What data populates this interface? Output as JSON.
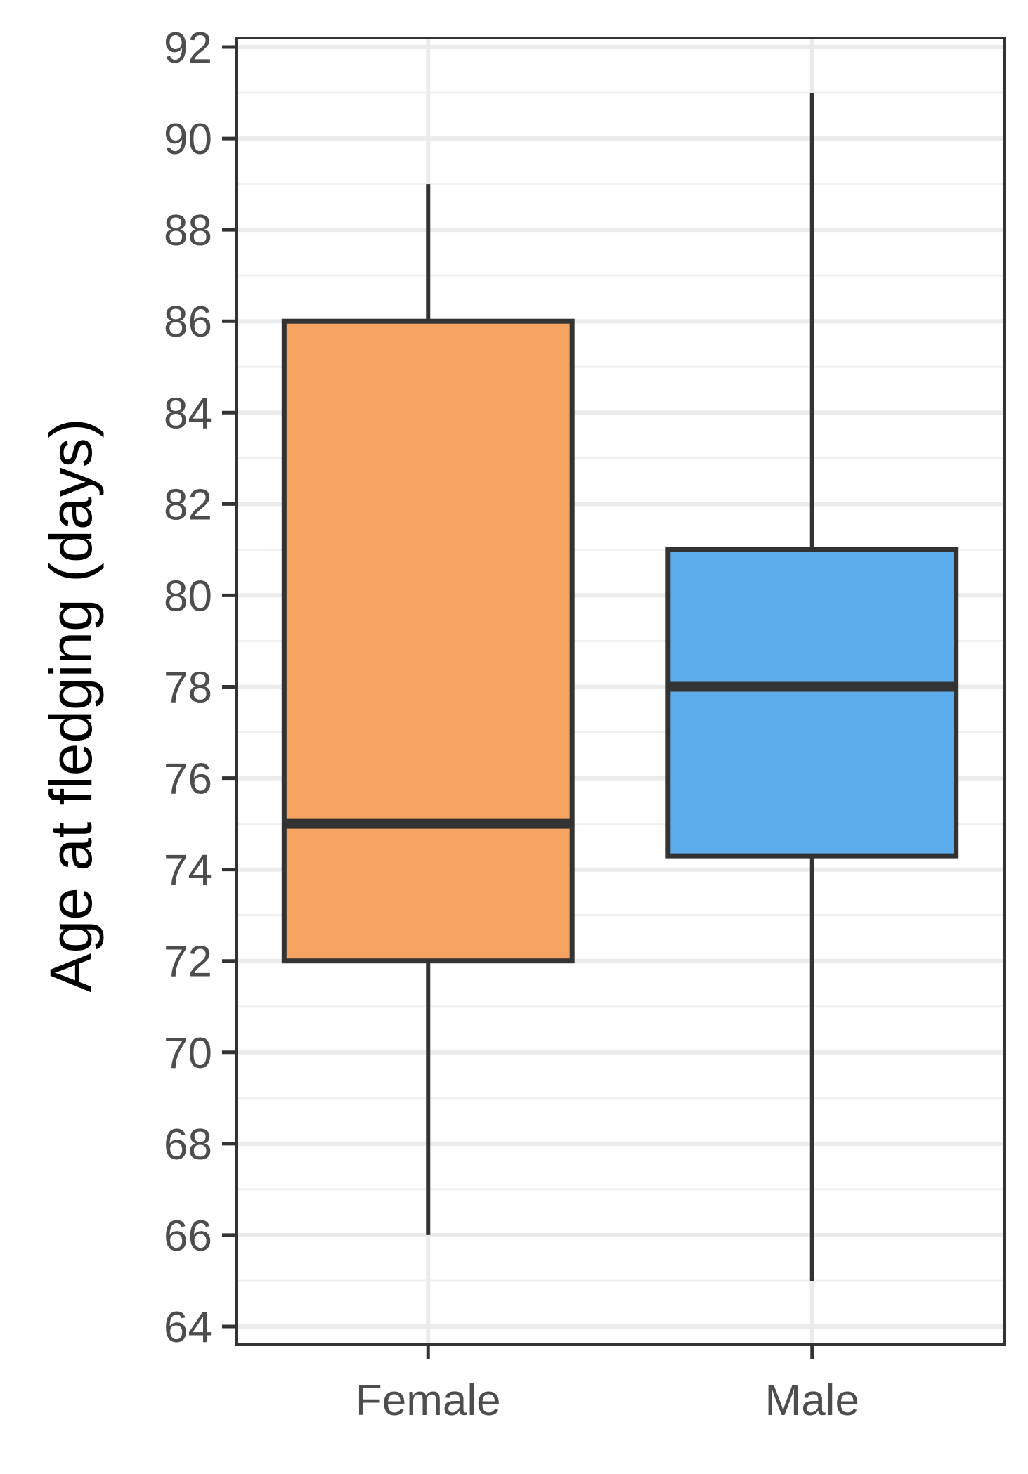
{
  "chart_data": {
    "type": "box",
    "title": "",
    "xlabel": "",
    "ylabel": "Age at fledging (days)",
    "ylim": [
      63.6,
      92.2
    ],
    "yticks": [
      64,
      66,
      68,
      70,
      72,
      74,
      76,
      78,
      80,
      82,
      84,
      86,
      88,
      90,
      92
    ],
    "grid": true,
    "legend": "none",
    "categories": [
      "Female",
      "Male"
    ],
    "boxes": [
      {
        "category": "Female",
        "min": 66,
        "q1": 72,
        "median": 75,
        "q3": 86,
        "max": 89,
        "color": "#F4A460"
      },
      {
        "category": "Male",
        "min": 65,
        "q1": 74.3,
        "median": 78,
        "q3": 81,
        "max": 91,
        "color": "#5DADEC"
      }
    ]
  }
}
